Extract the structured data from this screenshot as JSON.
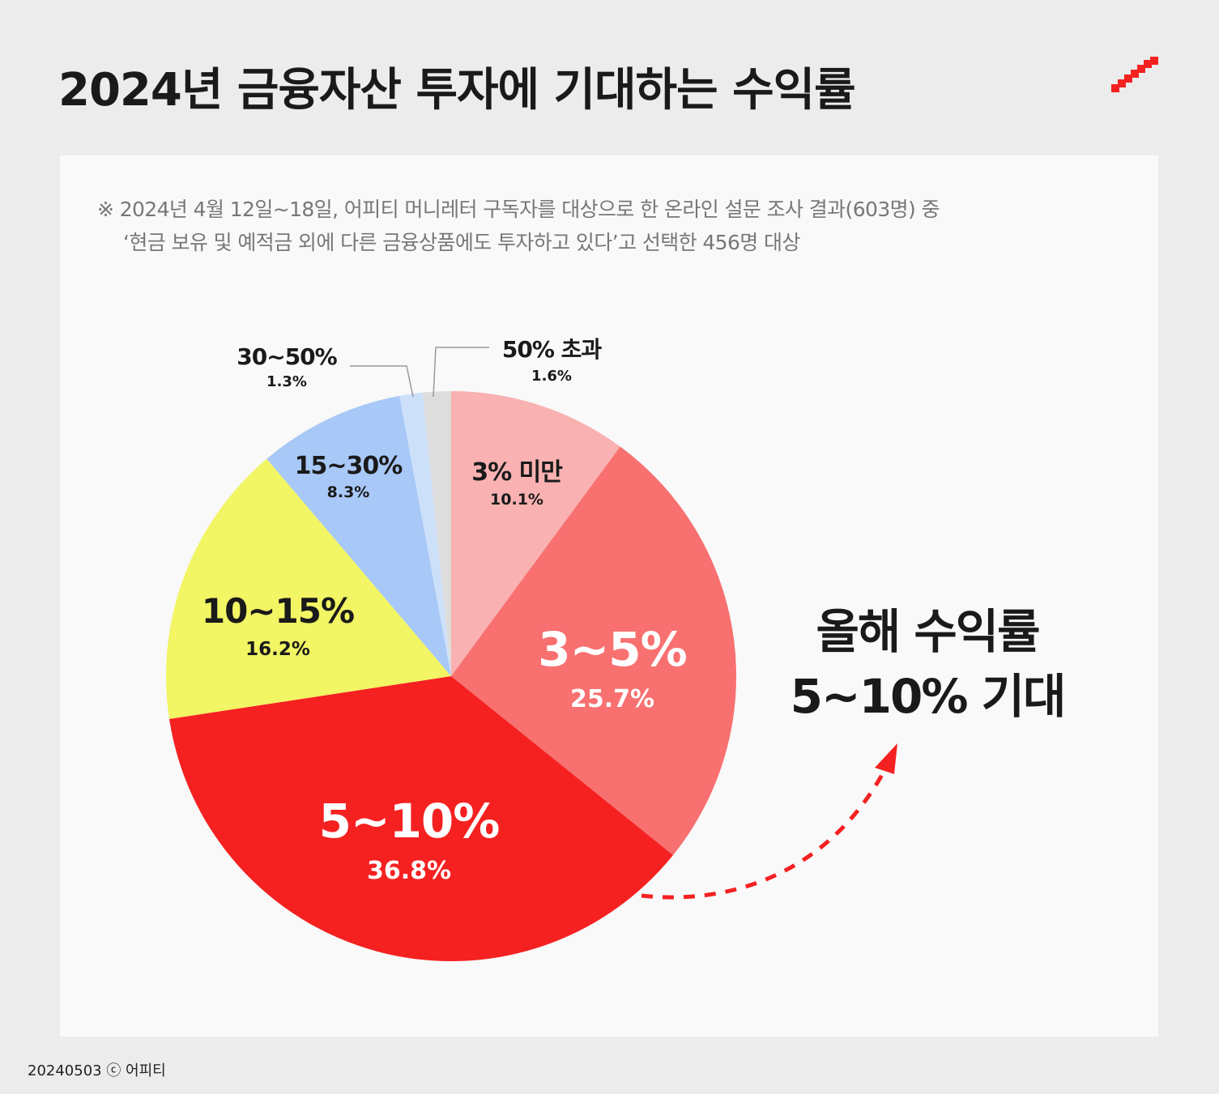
{
  "title": "2024년 금융자산 투자에 기대하는 수익률",
  "note_line1": "※ 2024년 4월 12일~18일, 어피티 머니레터 구독자를 대상으로 한 온라인 설문 조사 결과(603명) 중",
  "note_line2": "‘현금 보유 및 예적금 외에 다른 금융상품에도 투자하고 있다’고 선택한 456명 대상",
  "callout_line1": "올해 수익률",
  "callout_line2": "5~10% 기대",
  "footer": "20240503 ⓒ 어피티",
  "colors": {
    "accent": "#f52121",
    "background": "#ececec",
    "panel": "#f9f9f9"
  },
  "chart_data": {
    "type": "pie",
    "categories": [
      "3% 미만",
      "3~5%",
      "5~10%",
      "10~15%",
      "15~30%",
      "30~50%",
      "50% 초과"
    ],
    "values": [
      10.1,
      25.7,
      36.8,
      16.2,
      8.3,
      1.3,
      1.6
    ],
    "value_labels": [
      "10.1%",
      "25.7%",
      "36.8%",
      "16.2%",
      "8.3%",
      "1.3%",
      "1.6%"
    ],
    "colors": [
      "#f9b1b1",
      "#f87070",
      "#f52121",
      "#f2f564",
      "#a8c8f7",
      "#cce0fa",
      "#dddddd"
    ],
    "start": "12 o'clock",
    "direction": "clockwise"
  }
}
